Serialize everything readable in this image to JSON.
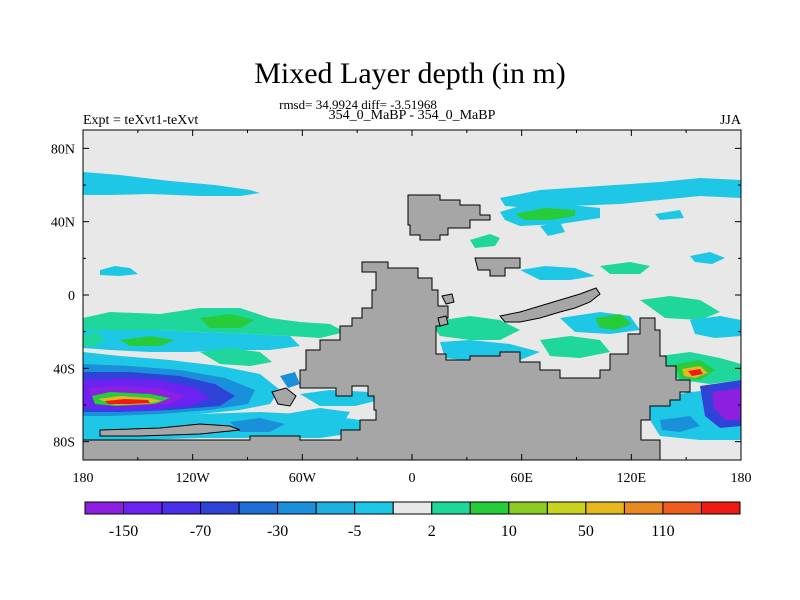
{
  "title": "Mixed Layer depth (in m)",
  "subtitle": {
    "stats": "rmsd= 34.9924 diff= -3.51968",
    "left": "Expt = teXvt1-teXvt",
    "center": "354_0_MaBP - 354_0_MaBP",
    "right": "JJA"
  },
  "axes": {
    "lat_ticks": [
      "80N",
      "40N",
      "0",
      "40S",
      "80S"
    ],
    "lon_ticks": [
      "180",
      "120W",
      "60W",
      "0",
      "60E",
      "120E",
      "180"
    ]
  },
  "colorbar": {
    "colors": [
      "#8c1fe0",
      "#6c22f0",
      "#4a2fe8",
      "#2f43d9",
      "#1f6ed6",
      "#1a90da",
      "#1fb0e0",
      "#1fc7e6",
      "#e8e8e8",
      "#1fd79a",
      "#26cc3a",
      "#8acc1f",
      "#c8d21f",
      "#e6b81f",
      "#e88a1f",
      "#ee5c1f",
      "#f01a14"
    ],
    "labels": [
      "-150",
      "-70",
      "-30",
      "-5",
      "2",
      "10",
      "50",
      "110"
    ]
  },
  "colors": {
    "land": "#a6a6a6",
    "ocean_neutral": "#e8e8e8",
    "frame": "#000000"
  }
}
